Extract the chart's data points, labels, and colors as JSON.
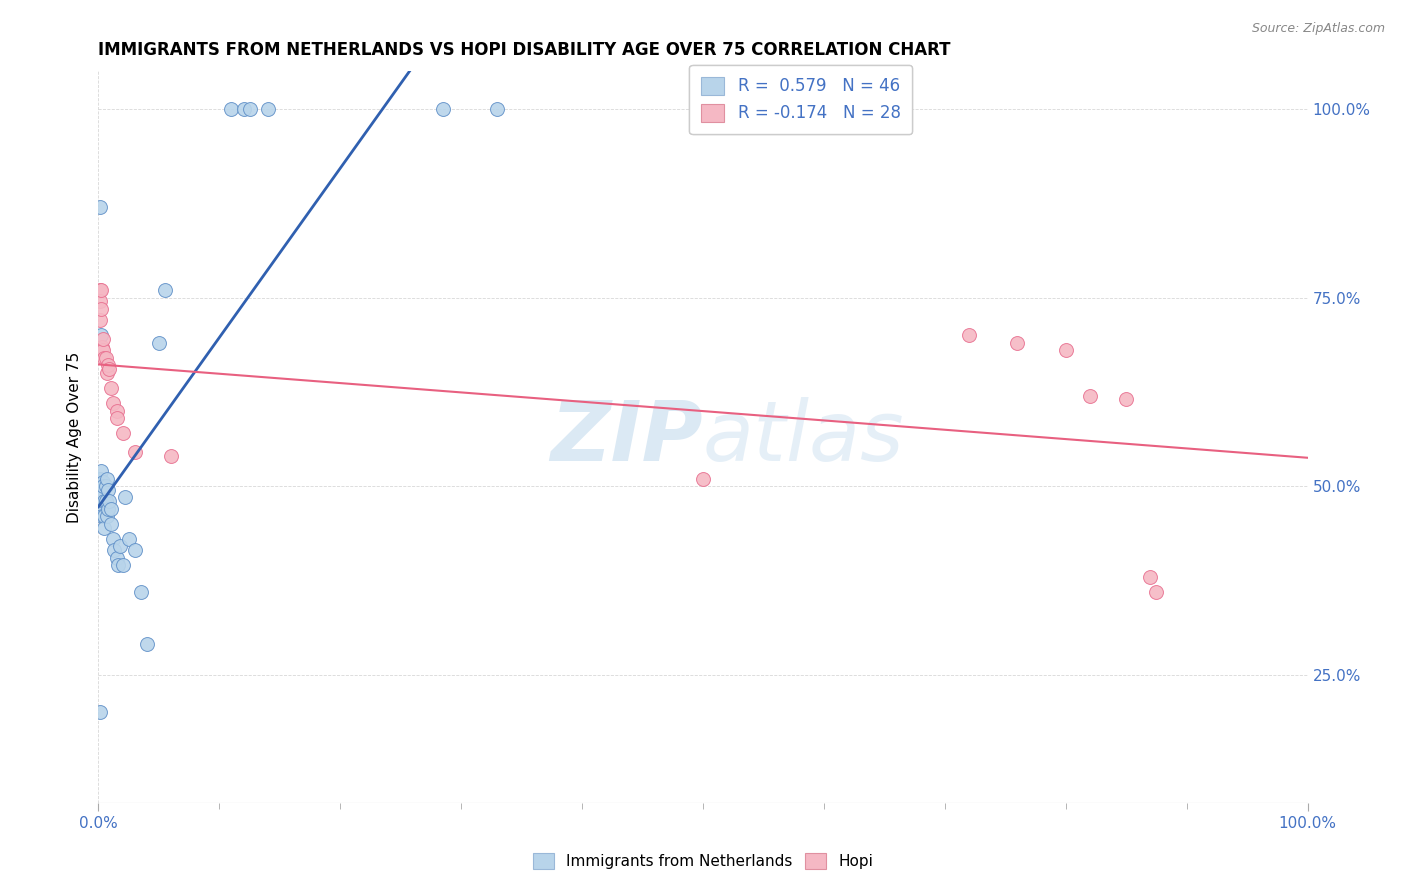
{
  "title": "IMMIGRANTS FROM NETHERLANDS VS HOPI DISABILITY AGE OVER 75 CORRELATION CHART",
  "source": "Source: ZipAtlas.com",
  "ylabel": "Disability Age Over 75",
  "xlim": [
    0.0,
    1.0
  ],
  "ylim": [
    0.08,
    1.05
  ],
  "xtick_vals": [
    0.0,
    0.25,
    0.5,
    0.75,
    1.0
  ],
  "ytick_vals": [
    0.25,
    0.5,
    0.75,
    1.0
  ],
  "blue_R": 0.579,
  "blue_N": 46,
  "pink_R": -0.174,
  "pink_N": 28,
  "blue_color": "#b8d4ea",
  "pink_color": "#f5b8c4",
  "blue_edge_color": "#6090c8",
  "pink_edge_color": "#e87090",
  "blue_line_color": "#3060b0",
  "pink_line_color": "#e86080",
  "watermark_color": "#cce0f0",
  "grid_color": "#d8d8d8",
  "tick_label_color": "#4472c4",
  "blue_points": [
    [
      0.001,
      0.5
    ],
    [
      0.001,
      0.49
    ],
    [
      0.001,
      0.51
    ],
    [
      0.002,
      0.48
    ],
    [
      0.002,
      0.5
    ],
    [
      0.002,
      0.52
    ],
    [
      0.003,
      0.495
    ],
    [
      0.003,
      0.475
    ],
    [
      0.003,
      0.46
    ],
    [
      0.004,
      0.505
    ],
    [
      0.004,
      0.49
    ],
    [
      0.004,
      0.5
    ],
    [
      0.005,
      0.48
    ],
    [
      0.005,
      0.46
    ],
    [
      0.005,
      0.445
    ],
    [
      0.006,
      0.5
    ],
    [
      0.006,
      0.48
    ],
    [
      0.007,
      0.51
    ],
    [
      0.007,
      0.46
    ],
    [
      0.008,
      0.495
    ],
    [
      0.008,
      0.47
    ],
    [
      0.009,
      0.48
    ],
    [
      0.01,
      0.47
    ],
    [
      0.01,
      0.45
    ],
    [
      0.012,
      0.43
    ],
    [
      0.013,
      0.415
    ],
    [
      0.015,
      0.405
    ],
    [
      0.016,
      0.395
    ],
    [
      0.018,
      0.42
    ],
    [
      0.02,
      0.395
    ],
    [
      0.022,
      0.485
    ],
    [
      0.025,
      0.43
    ],
    [
      0.03,
      0.415
    ],
    [
      0.035,
      0.36
    ],
    [
      0.04,
      0.29
    ],
    [
      0.001,
      0.87
    ],
    [
      0.002,
      0.7
    ],
    [
      0.05,
      0.69
    ],
    [
      0.055,
      0.76
    ],
    [
      0.11,
      1.0
    ],
    [
      0.12,
      1.0
    ],
    [
      0.125,
      1.0
    ],
    [
      0.14,
      1.0
    ],
    [
      0.285,
      1.0
    ],
    [
      0.33,
      1.0
    ],
    [
      0.001,
      0.2
    ]
  ],
  "pink_points": [
    [
      0.001,
      0.76
    ],
    [
      0.001,
      0.745
    ],
    [
      0.001,
      0.72
    ],
    [
      0.002,
      0.76
    ],
    [
      0.002,
      0.735
    ],
    [
      0.003,
      0.685
    ],
    [
      0.004,
      0.68
    ],
    [
      0.004,
      0.695
    ],
    [
      0.005,
      0.67
    ],
    [
      0.006,
      0.67
    ],
    [
      0.007,
      0.65
    ],
    [
      0.008,
      0.66
    ],
    [
      0.009,
      0.655
    ],
    [
      0.01,
      0.63
    ],
    [
      0.012,
      0.61
    ],
    [
      0.015,
      0.6
    ],
    [
      0.015,
      0.59
    ],
    [
      0.02,
      0.57
    ],
    [
      0.03,
      0.545
    ],
    [
      0.06,
      0.54
    ],
    [
      0.5,
      0.51
    ],
    [
      0.72,
      0.7
    ],
    [
      0.76,
      0.69
    ],
    [
      0.8,
      0.68
    ],
    [
      0.82,
      0.62
    ],
    [
      0.85,
      0.615
    ],
    [
      0.87,
      0.38
    ],
    [
      0.875,
      0.36
    ]
  ]
}
